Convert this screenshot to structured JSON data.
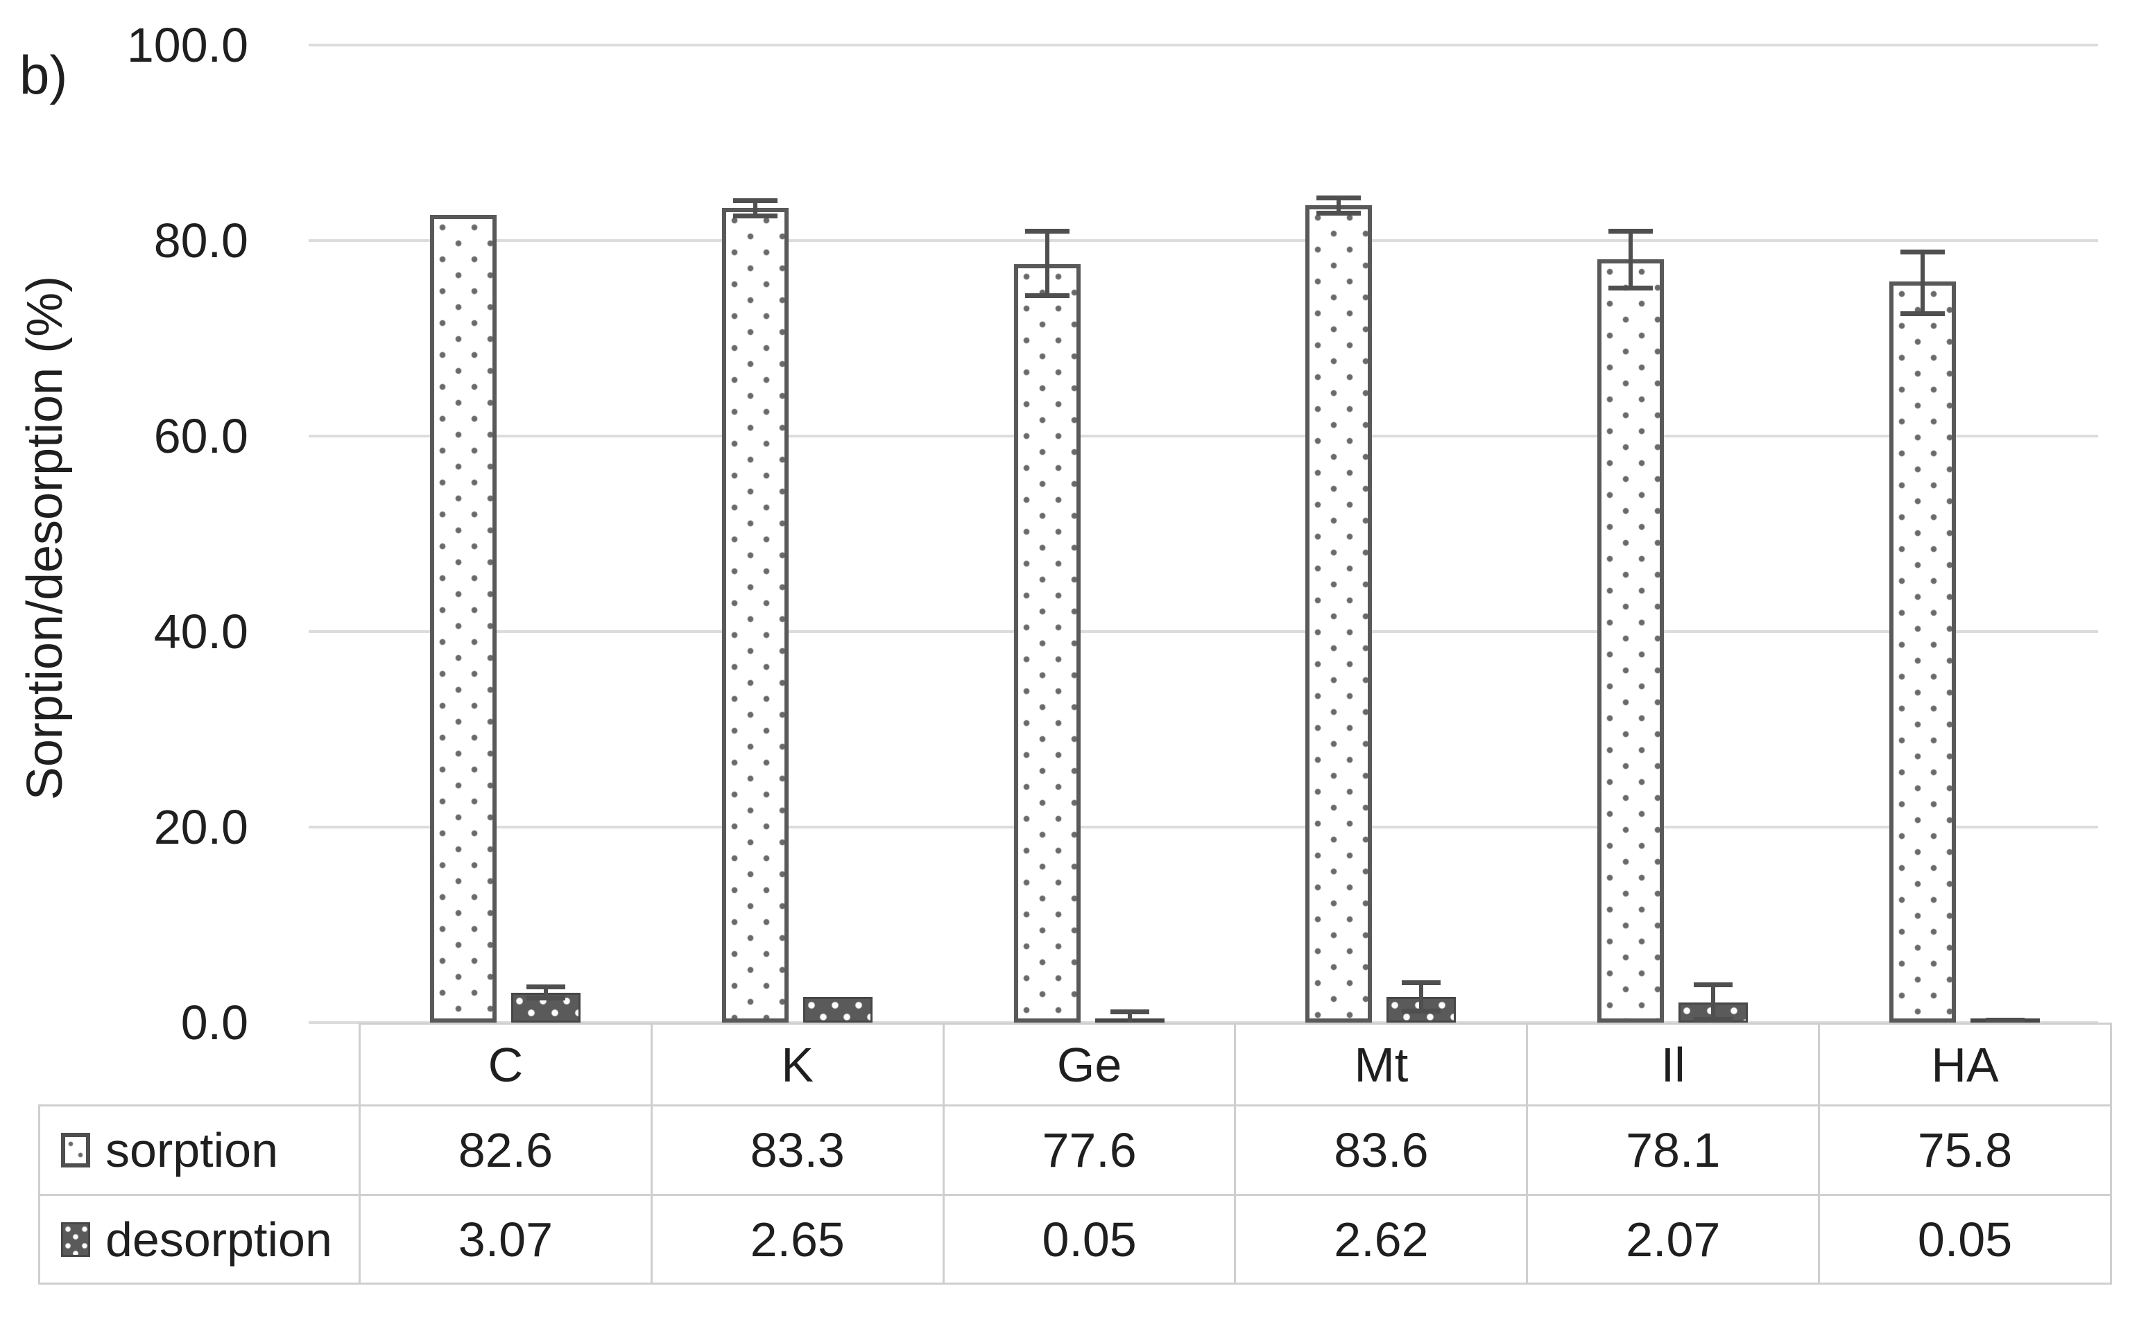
{
  "figure_label": "b)",
  "y_axis": {
    "title": "Sorption/desorption (%)",
    "ticks": [
      "100.0",
      "80.0",
      "60.0",
      "40.0",
      "20.0",
      "0.0"
    ],
    "min": 0,
    "max": 100,
    "step": 20
  },
  "chart_data": {
    "type": "bar",
    "categories": [
      "C",
      "K",
      "Ge",
      "Mt",
      "Il",
      "HA"
    ],
    "series": [
      {
        "name": "sorption",
        "values": [
          82.6,
          83.3,
          77.6,
          83.6,
          78.1,
          75.8
        ],
        "errors": [
          null,
          {
            "plus": 0.8,
            "minus": 0.8
          },
          {
            "plus": 3.4,
            "minus": 3.3
          },
          {
            "plus": 0.8,
            "minus": 0.8
          },
          {
            "plus": 2.9,
            "minus": 3.0
          },
          {
            "plus": 3.1,
            "minus": 3.3
          }
        ],
        "pattern": "white-with-dark-dots"
      },
      {
        "name": "desorption",
        "values": [
          3.07,
          2.65,
          0.05,
          2.62,
          2.07,
          0.05
        ],
        "errors": [
          {
            "plus": 0.6,
            "minus": 0.6
          },
          null,
          {
            "plus": 1.05,
            "minus": 0
          },
          {
            "plus": 1.5,
            "minus": 1.5
          },
          {
            "plus": 1.8,
            "minus": 1.8
          },
          {
            "plus": 0.25,
            "minus": 0
          }
        ],
        "pattern": "dark-with-white-dots"
      }
    ],
    "title": "",
    "xlabel": "",
    "ylabel": "Sorption/desorption (%)",
    "ylim": [
      0,
      100
    ],
    "grid": true,
    "legend_position": "table-left-column"
  },
  "table": {
    "column_headers": [
      "C",
      "K",
      "Ge",
      "Mt",
      "Il",
      "HA"
    ],
    "rows": [
      {
        "label": "sorption",
        "values": [
          "82.6",
          "83.3",
          "77.6",
          "83.6",
          "78.1",
          "75.8"
        ]
      },
      {
        "label": "desorption",
        "values": [
          "3.07",
          "2.65",
          "0.05",
          "2.62",
          "2.07",
          "0.05"
        ]
      }
    ]
  },
  "colors": {
    "bar_outline": "#595959",
    "sorption_fill": "#ffffff",
    "desorption_fill": "#5a5a5a",
    "error_bar": "#4f4f4f",
    "gridline": "#dcdcdc",
    "table_border": "#cfcfcf",
    "text": "#1f1f1f",
    "background": "#ffffff"
  }
}
